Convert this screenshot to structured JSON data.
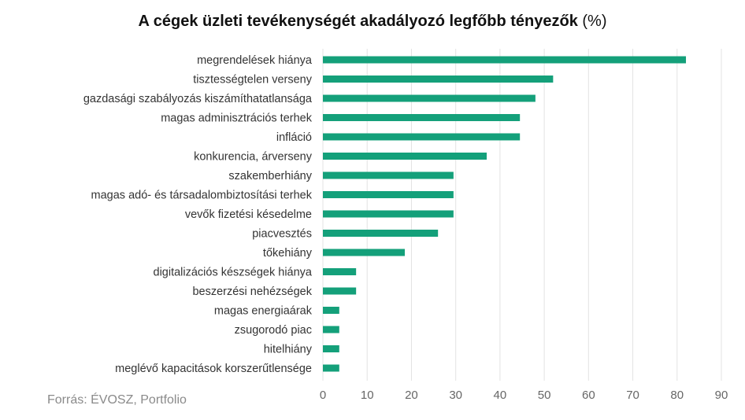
{
  "chart_data": {
    "type": "bar",
    "orientation": "horizontal",
    "title": "A cégek üzleti tevékenységét akadályozó legfőbb tényezők",
    "title_unit": "(%)",
    "source": "Forrás: ÉVOSZ, Portfolio",
    "categories": [
      "megrendelések hiánya",
      "tisztességtelen verseny",
      "gazdasági szabályozás kiszámíthatatlansága",
      "magas adminisztrációs terhek",
      "infláció",
      "konkurencia, árverseny",
      "szakemberhiány",
      "magas adó- és társadalombiztosítási terhek",
      "vevők fizetési késedelme",
      "piacvesztés",
      "tőkehiány",
      "digitalizációs készségek hiánya",
      "beszerzési nehézségek",
      "magas energiaárak",
      "zsugorodó piac",
      "hitelhiány",
      "meglévő kapacitások korszerűtlensége"
    ],
    "values": [
      82,
      52,
      48,
      44.5,
      44.5,
      37,
      29.5,
      29.5,
      29.5,
      26,
      18.5,
      7.5,
      7.5,
      3.7,
      3.7,
      3.7,
      3.7
    ],
    "xlim": [
      0,
      90
    ],
    "xticks": [
      "0",
      "10",
      "20",
      "30",
      "40",
      "50",
      "60",
      "70",
      "80",
      "90"
    ],
    "grid": true,
    "legend": "none",
    "colors": {
      "bar": "#14a07a",
      "grid": "#e3e3e3",
      "text": "#333333",
      "tick": "#666666"
    }
  }
}
